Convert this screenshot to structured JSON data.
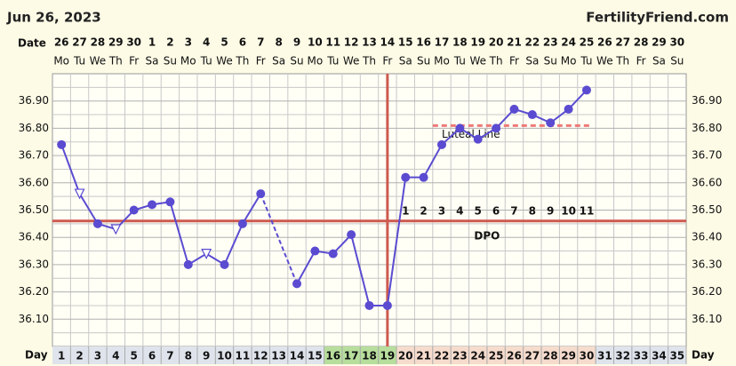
{
  "chart_data": {
    "type": "line",
    "title": "Jun 26, 2023",
    "site": "FertilityFriend.com",
    "date_label": "Date",
    "day_label": "Day",
    "x": [
      1,
      2,
      3,
      4,
      5,
      6,
      7,
      8,
      9,
      10,
      11,
      12,
      13,
      14,
      15,
      16,
      17,
      18,
      19,
      20,
      21,
      22,
      23,
      24,
      25,
      26,
      27,
      28,
      29,
      30,
      31,
      32,
      33,
      34,
      35
    ],
    "xlim": [
      0.5,
      35.5
    ],
    "dates": [
      "26",
      "27",
      "28",
      "29",
      "30",
      "1",
      "2",
      "3",
      "4",
      "5",
      "6",
      "7",
      "8",
      "9",
      "10",
      "11",
      "12",
      "13",
      "14",
      "15",
      "16",
      "17",
      "18",
      "19",
      "20",
      "21",
      "22",
      "23",
      "24",
      "25",
      "26",
      "27",
      "28",
      "29",
      "30"
    ],
    "weekdays": [
      "Mo",
      "Tu",
      "We",
      "Th",
      "Fr",
      "Sa",
      "Su",
      "Mo",
      "Tu",
      "We",
      "Th",
      "Fr",
      "Sa",
      "Su",
      "Mo",
      "Tu",
      "We",
      "Th",
      "Fr",
      "Sa",
      "Su",
      "Mo",
      "Tu",
      "We",
      "Th",
      "Fr",
      "Sa",
      "Su",
      "Mo",
      "Tu",
      "We",
      "Th",
      "Fr",
      "Sa",
      "Su"
    ],
    "series": [
      {
        "color": "#5a4bd1",
        "values": [
          36.74,
          36.56,
          36.45,
          36.43,
          36.5,
          36.52,
          36.53,
          36.3,
          36.34,
          36.3,
          36.45,
          36.56,
          null,
          36.23,
          36.35,
          36.34,
          36.41,
          36.15,
          36.15,
          36.62,
          36.62,
          36.74,
          36.8,
          36.76,
          36.8,
          36.87,
          36.85,
          36.82,
          36.87,
          36.94,
          null,
          null,
          null,
          null,
          null
        ],
        "markers": [
          "dot",
          "triangle",
          "dot",
          "triangle",
          "dot",
          "dot",
          "dot",
          "dot",
          "triangle",
          "dot",
          "dot",
          "dot",
          null,
          "dot",
          "dot",
          "dot",
          "dot",
          "dot",
          "dot",
          "dot",
          "dot",
          "dot",
          "dot",
          "dot",
          "dot",
          "dot",
          "dot",
          "dot",
          "dot",
          "dot",
          null,
          null,
          null,
          null,
          null
        ]
      }
    ],
    "ylim": [
      36.0,
      37.0
    ],
    "yticks": [
      {
        "value": 36.1,
        "label": "36.10"
      },
      {
        "value": 36.2,
        "label": "36.20"
      },
      {
        "value": 36.3,
        "label": "36.30"
      },
      {
        "value": 36.4,
        "label": "36.40"
      },
      {
        "value": 36.5,
        "label": "36.50"
      },
      {
        "value": 36.6,
        "label": "36.60"
      },
      {
        "value": 36.7,
        "label": "36.70"
      },
      {
        "value": 36.8,
        "label": "36.80"
      },
      {
        "value": 36.9,
        "label": "36.90"
      }
    ],
    "y_minor_ticks": [
      36.05,
      36.15,
      36.25,
      36.35,
      36.45,
      36.55,
      36.65,
      36.75,
      36.85,
      36.95
    ],
    "grid": true,
    "cover_line": {
      "value": 36.46,
      "color": "#cd5a4f"
    },
    "ovulation_day": 19,
    "dpo_title": "DPO",
    "dpo_labels": [
      1,
      2,
      3,
      4,
      5,
      6,
      7,
      8,
      9,
      10,
      11
    ],
    "luteal_line": {
      "label": "Luteal Line",
      "value": 36.81,
      "start": 22,
      "end": 30,
      "color": "#ee7a78"
    },
    "day_bands": [
      {
        "start": 1,
        "end": 15,
        "color": "#dfe4ec"
      },
      {
        "start": 16,
        "end": 19,
        "color": "#b7de9c"
      },
      {
        "start": 20,
        "end": 30,
        "color": "#f6dccd"
      },
      {
        "start": 31,
        "end": 35,
        "color": "#dfe4ec"
      }
    ]
  }
}
